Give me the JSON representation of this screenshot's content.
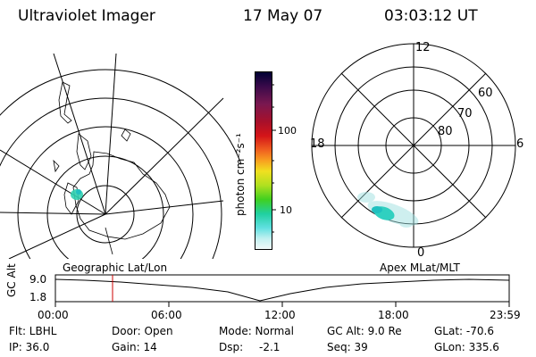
{
  "header": {
    "title": "Ultraviolet Imager",
    "date": "17 May 07",
    "time": "03:03:12 UT"
  },
  "colorbar": {
    "unit_label": "photon cm⁻²s⁻¹",
    "ticks": [
      "100",
      "10"
    ],
    "colors": [
      "#000033",
      "#3a0a4a",
      "#7a1850",
      "#a8102a",
      "#d41418",
      "#f06020",
      "#f8a020",
      "#f0e020",
      "#b0e020",
      "#40d020",
      "#20d0a0",
      "#60e0e0",
      "#c0f0f0",
      "#f0f8f8"
    ]
  },
  "polar_plot": {
    "mlt_labels": {
      "top": "12",
      "left": "18",
      "right": "6",
      "bottom": "0"
    },
    "lat_labels": [
      "60",
      "70",
      "80"
    ],
    "aurora_color": "#40d0d0"
  },
  "timeline": {
    "y_axis_label": "GC Alt",
    "y_ticks": [
      "9.0",
      "1.8"
    ],
    "left_title": "Geographic Lat/Lon",
    "right_title": "Apex  MLat/MLT",
    "x_ticks": [
      "00:00",
      "06:00",
      "12:00",
      "18:00",
      "23:59"
    ],
    "current_time_fraction": 0.126,
    "marker_color": "#cc0000"
  },
  "info": {
    "filter": "Flt: LBHL",
    "door": "Door: Open",
    "mode": "Mode: Normal",
    "gc_alt": "GC Alt: 9.0 Re",
    "glat": "GLat: -70.6",
    "ip": "IP: 36.0",
    "gain": "Gain: 14",
    "dsp_label": "Dsp:",
    "dsp_value": "-2.1",
    "seq": "Seq: 39",
    "glon": "GLon: 335.6"
  }
}
